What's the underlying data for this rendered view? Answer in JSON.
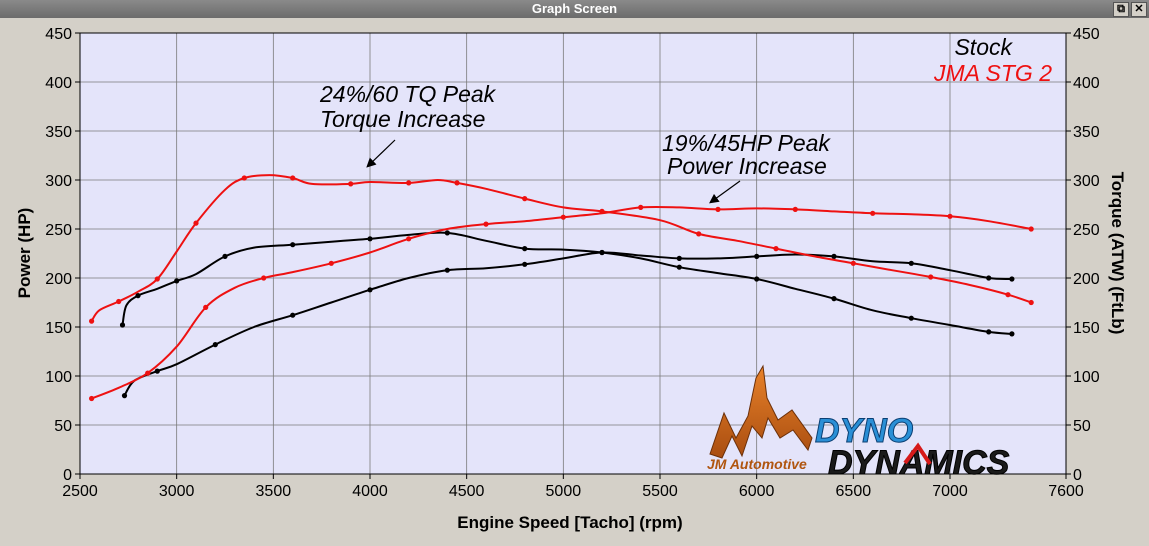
{
  "window": {
    "title": "Graph Screen",
    "restore_glyph": "⧉",
    "close_glyph": "✕"
  },
  "annotations": {
    "tq_line1": "24%/60 TQ Peak",
    "tq_line2": "Torque Increase",
    "hp_line1": "19%/45HP Peak",
    "hp_line2": "Power Increase"
  },
  "logo": {
    "jm_text": "JM Automotive",
    "dyno_text": "DYNO",
    "dynamics_text": "DYNAMICS"
  },
  "colors": {
    "plot_bg": "#e4e4fa",
    "grid": "#7a7a7a",
    "stock": "#000000",
    "stg2": "#ee1111"
  },
  "chart_data": {
    "type": "line",
    "xlabel": "Engine Speed [Tacho] (rpm)",
    "ylabel": "Power (HP)",
    "y2label": "Torque (ATW) (FtLb)",
    "xlim": [
      2500,
      7600
    ],
    "ylim": [
      0,
      450
    ],
    "y2lim": [
      0,
      450
    ],
    "xticks": [
      2500,
      3000,
      3500,
      4000,
      4500,
      5000,
      5500,
      6000,
      6500,
      7000,
      7600
    ],
    "yticks": [
      0,
      50,
      100,
      150,
      200,
      250,
      300,
      350,
      400,
      450
    ],
    "grid": true,
    "legend_position": "top-right",
    "legend": [
      {
        "label": "Stock",
        "color": "#000000"
      },
      {
        "label": "JMA STG 2",
        "color": "#ee1111"
      }
    ],
    "series": [
      {
        "name": "Stock",
        "measure": "power",
        "color": "#000000",
        "x": [
          2730,
          2780,
          2900,
          3000,
          3200,
          3400,
          3600,
          3800,
          4000,
          4200,
          4400,
          4600,
          4800,
          5000,
          5200,
          5400,
          5600,
          5800,
          6000,
          6200,
          6400,
          6600,
          6800,
          7000,
          7200,
          7320
        ],
        "y": [
          80,
          95,
          105,
          112,
          132,
          150,
          162,
          175,
          188,
          200,
          208,
          210,
          214,
          220,
          226,
          223,
          220,
          220,
          222,
          224,
          222,
          217,
          215,
          208,
          200,
          199
        ]
      },
      {
        "name": "Stock",
        "measure": "torque",
        "color": "#000000",
        "x": [
          2720,
          2740,
          2800,
          2900,
          3000,
          3100,
          3250,
          3400,
          3600,
          3800,
          4000,
          4200,
          4400,
          4600,
          4800,
          5000,
          5200,
          5400,
          5600,
          5800,
          6000,
          6200,
          6400,
          6600,
          6800,
          7000,
          7200,
          7320
        ],
        "y": [
          152,
          172,
          182,
          189,
          197,
          204,
          222,
          231,
          234,
          237,
          240,
          244,
          246,
          238,
          230,
          229,
          226,
          220,
          211,
          205,
          199,
          189,
          179,
          167,
          159,
          152,
          145,
          143
        ]
      },
      {
        "name": "JMA STG 2",
        "measure": "power",
        "color": "#ee1111",
        "x": [
          2560,
          2700,
          2850,
          3000,
          3150,
          3300,
          3450,
          3600,
          3800,
          4000,
          4200,
          4400,
          4600,
          4800,
          5000,
          5200,
          5400,
          5600,
          5800,
          6000,
          6200,
          6400,
          6600,
          6800,
          7000,
          7200,
          7420
        ],
        "y": [
          77,
          88,
          103,
          130,
          170,
          190,
          200,
          206,
          215,
          226,
          240,
          250,
          255,
          258,
          262,
          266,
          272,
          272,
          270,
          271,
          270,
          268,
          266,
          265,
          263,
          258,
          250
        ]
      },
      {
        "name": "JMA STG 2",
        "measure": "torque",
        "color": "#ee1111",
        "x": [
          2560,
          2600,
          2700,
          2800,
          2900,
          3000,
          3100,
          3250,
          3350,
          3480,
          3600,
          3700,
          3900,
          4000,
          4200,
          4350,
          4450,
          4600,
          4800,
          5000,
          5200,
          5500,
          5700,
          5900,
          6100,
          6300,
          6500,
          6700,
          6900,
          7100,
          7300,
          7420
        ],
        "y": [
          156,
          167,
          176,
          186,
          199,
          227,
          256,
          290,
          302,
          305,
          302,
          296,
          296,
          298,
          297,
          300,
          297,
          291,
          281,
          272,
          268,
          259,
          245,
          238,
          230,
          222,
          215,
          208,
          201,
          193,
          183,
          175
        ]
      }
    ]
  }
}
